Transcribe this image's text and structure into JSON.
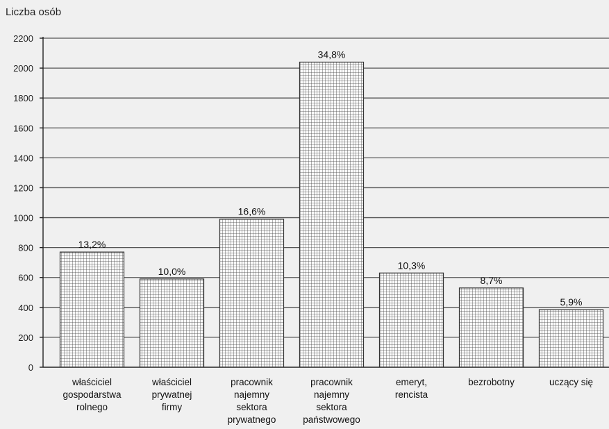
{
  "chart_data": {
    "type": "bar",
    "ylabel": "Liczba osób",
    "ylim": [
      0,
      2200
    ],
    "yticks": [
      0,
      200,
      400,
      600,
      800,
      1000,
      1200,
      1400,
      1600,
      1800,
      2000,
      2200
    ],
    "grid": true,
    "categories": [
      [
        "właściciel",
        "gospodarstwa",
        "rolnego"
      ],
      [
        "właściciel",
        "prywatnej",
        "firmy"
      ],
      [
        "pracownik",
        "najemny",
        "sektora",
        "prywatnego"
      ],
      [
        "pracownik",
        "najemny",
        "sektora",
        "państwowego"
      ],
      [
        "emeryt,",
        "rencista"
      ],
      [
        "bezrobotny"
      ],
      [
        "uczący się"
      ]
    ],
    "values": [
      770,
      590,
      990,
      2040,
      630,
      530,
      385
    ],
    "data_labels": [
      "13,2%",
      "10,0%",
      "16,6%",
      "34,8%",
      "10,3%",
      "8,7%",
      "5,9%"
    ]
  }
}
